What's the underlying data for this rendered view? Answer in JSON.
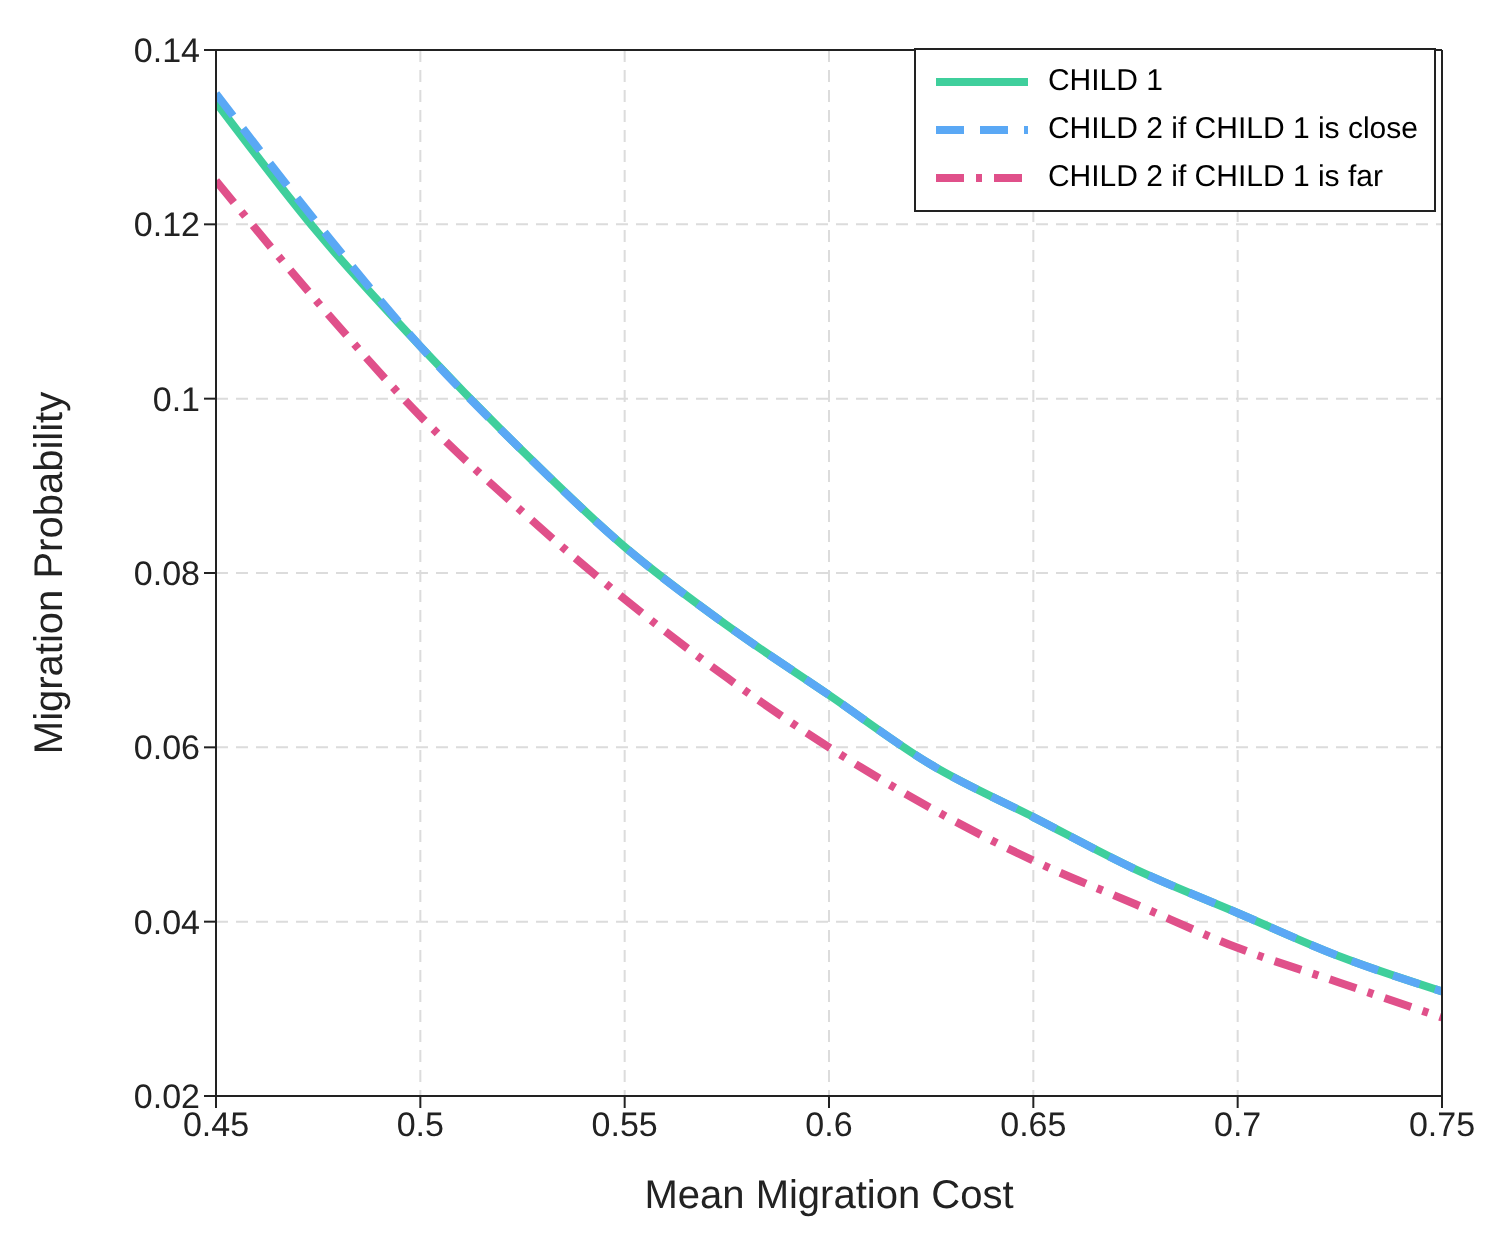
{
  "chart_data": {
    "type": "line",
    "xlabel": "Mean Migration Cost",
    "ylabel": "Migration Probability",
    "x": [
      0.45,
      0.475,
      0.5,
      0.525,
      0.55,
      0.575,
      0.6,
      0.625,
      0.65,
      0.675,
      0.7,
      0.725,
      0.75
    ],
    "series": [
      {
        "name": "CHILD 1",
        "color": "#3fcf9c",
        "line_style": "solid",
        "values": [
          0.134,
          0.119,
          0.106,
          0.094,
          0.083,
          0.074,
          0.066,
          0.058,
          0.052,
          0.046,
          0.041,
          0.036,
          0.032
        ]
      },
      {
        "name": "CHILD 2 if CHILD 1 is close",
        "color": "#5aa8f5",
        "line_style": "dashed",
        "values": [
          0.135,
          0.12,
          0.106,
          0.094,
          0.083,
          0.074,
          0.066,
          0.058,
          0.052,
          0.046,
          0.041,
          0.036,
          0.032
        ]
      },
      {
        "name": "CHILD 2 if CHILD 1 is far",
        "color": "#e0508a",
        "line_style": "dashdot",
        "values": [
          0.125,
          0.111,
          0.098,
          0.087,
          0.077,
          0.068,
          0.06,
          0.053,
          0.047,
          0.042,
          0.037,
          0.033,
          0.029
        ]
      }
    ],
    "xlim": [
      0.45,
      0.75
    ],
    "xticks": [
      0.45,
      0.5,
      0.55,
      0.6,
      0.65,
      0.7,
      0.75
    ],
    "ylim": [
      0.02,
      0.14
    ],
    "yticks": [
      0.02,
      0.04,
      0.06,
      0.08,
      0.1,
      0.12,
      0.14
    ],
    "grid": true,
    "legend": "top right"
  }
}
